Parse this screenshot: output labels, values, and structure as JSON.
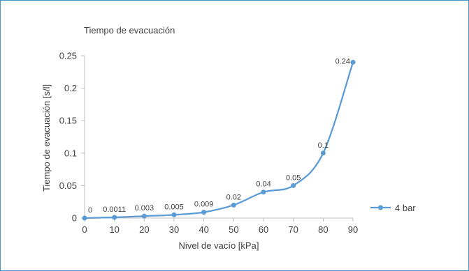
{
  "chart_data": {
    "type": "line",
    "title": "Tiempo de evacuación",
    "xlabel": "Nivel de vacío [kPa]",
    "ylabel": "Tiempo de evacuación [s/l]",
    "x": [
      0,
      10,
      20,
      30,
      40,
      50,
      60,
      70,
      80,
      90
    ],
    "xlim": [
      0,
      90
    ],
    "ylim": [
      0,
      0.25
    ],
    "x_ticks": [
      "0",
      "10",
      "20",
      "30",
      "40",
      "50",
      "60",
      "70",
      "80",
      "90"
    ],
    "y_ticks": [
      "0",
      "0.05",
      "0.1",
      "0.15",
      "0.2",
      "0.25"
    ],
    "y_tick_values": [
      0,
      0.05,
      0.1,
      0.15,
      0.2,
      0.25
    ],
    "grid": false,
    "legend_position": "right",
    "series": [
      {
        "name": "4 bar",
        "color": "#5b9bd5",
        "values": [
          0,
          0.0011,
          0.003,
          0.005,
          0.009,
          0.02,
          0.04,
          0.05,
          0.1,
          0.24
        ],
        "labels": [
          "0",
          "0.0011",
          "0.003",
          "0.005",
          "0.009",
          "0.02",
          "0.04",
          "0.05",
          "0.1",
          "0.24"
        ]
      }
    ]
  }
}
